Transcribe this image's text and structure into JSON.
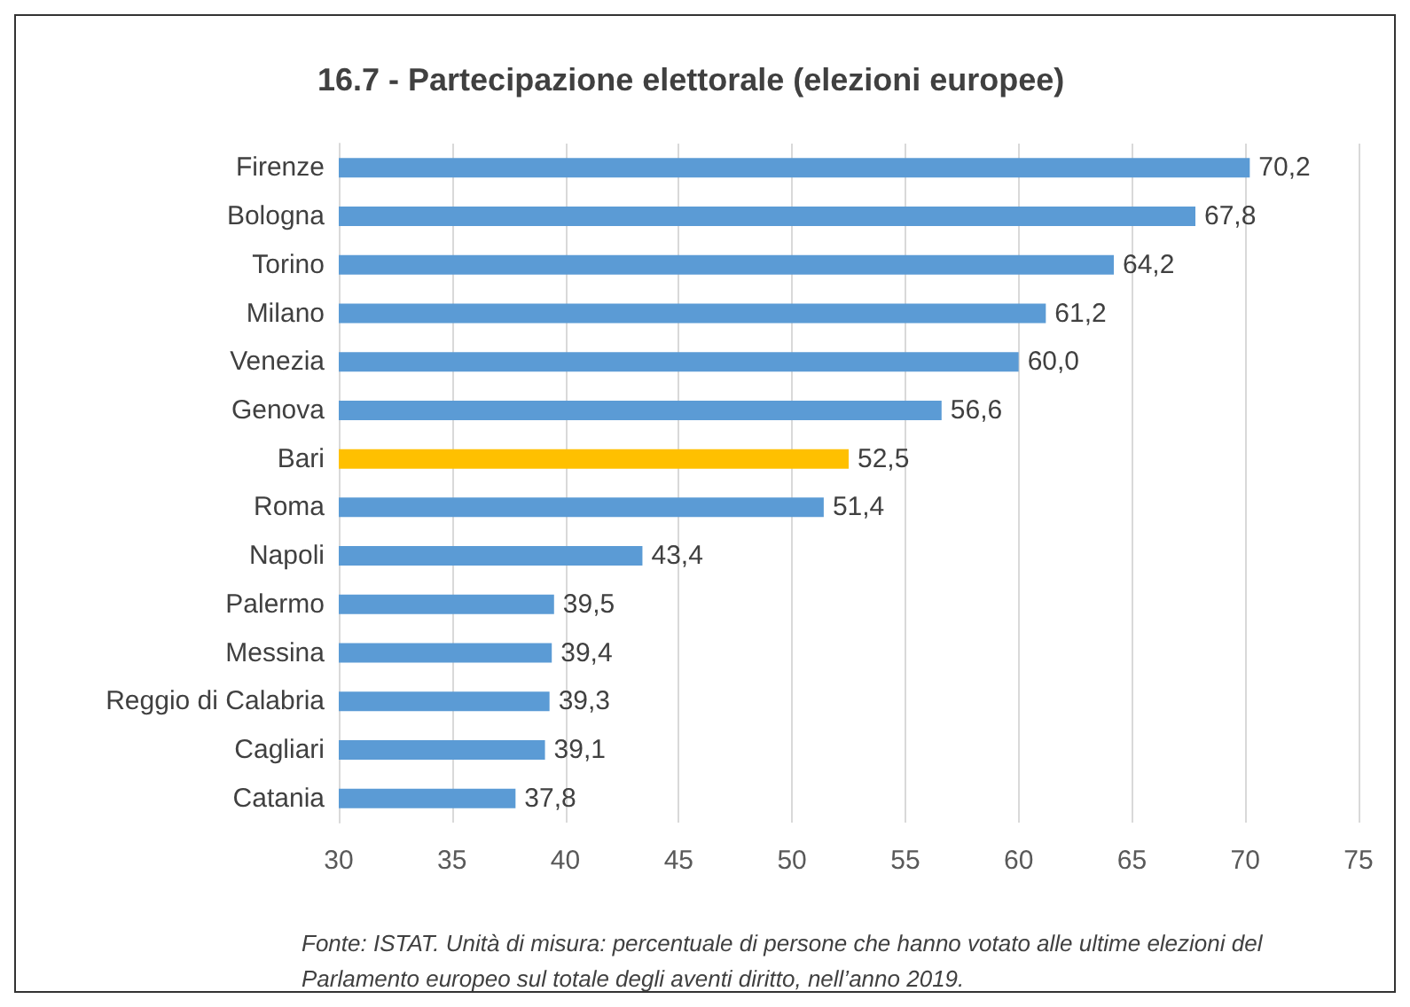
{
  "chart_data": {
    "type": "bar",
    "orientation": "horizontal",
    "title": "16.7 - Partecipazione elettorale (elezioni europee)",
    "categories": [
      "Firenze",
      "Bologna",
      "Torino",
      "Milano",
      "Venezia",
      "Genova",
      "Bari",
      "Roma",
      "Napoli",
      "Palermo",
      "Messina",
      "Reggio di Calabria",
      "Cagliari",
      "Catania"
    ],
    "values": [
      70.2,
      67.8,
      64.2,
      61.2,
      60.0,
      56.6,
      52.5,
      51.4,
      43.4,
      39.5,
      39.4,
      39.3,
      39.1,
      37.8
    ],
    "colors": [
      "#5b9bd5",
      "#5b9bd5",
      "#5b9bd5",
      "#5b9bd5",
      "#5b9bd5",
      "#5b9bd5",
      "#ffc000",
      "#5b9bd5",
      "#5b9bd5",
      "#5b9bd5",
      "#5b9bd5",
      "#5b9bd5",
      "#5b9bd5",
      "#5b9bd5"
    ],
    "value_labels": [
      "70,2",
      "67,8",
      "64,2",
      "61,2",
      "60,0",
      "56,6",
      "52,5",
      "51,4",
      "43,4",
      "39,5",
      "39,4",
      "39,3",
      "39,1",
      "37,8"
    ],
    "xlim": [
      30,
      75
    ],
    "xticks": [
      30,
      35,
      40,
      45,
      50,
      55,
      60,
      65,
      70,
      75
    ],
    "grid": "x",
    "annotations": [
      "Fonte: ISTAT. Unità di misura: percentuale di persone che hanno votato alle ultime elezioni del Parlamento europeo sul totale degli aventi diritto, nell’anno 2019."
    ]
  }
}
